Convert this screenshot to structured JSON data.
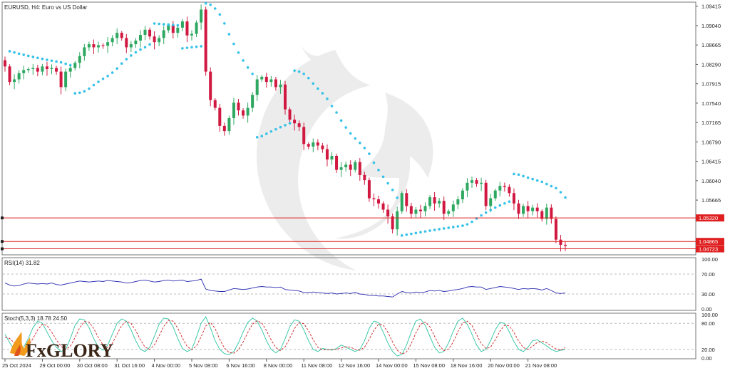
{
  "header": {
    "symbol_title": "EURUSD, H4:  Euro vs US Dollar",
    "rsi_title": "RSI(14) 31.82",
    "stoch_title": "Stoch(5,3,3) 18.78 24.50"
  },
  "logo": {
    "text": "FxGLORY"
  },
  "colors": {
    "bull": "#2ea860",
    "bear": "#d01840",
    "psar": "#36c2e8",
    "hline": "#e02020",
    "rsi": "#2a2ab0",
    "stoch_main": "#3ec8a8",
    "stoch_signal": "#d02020",
    "frame": "#777777",
    "badge": "#e02020"
  },
  "chart_data": [
    {
      "type": "candlestick",
      "title": "EURUSD, H4:  Euro vs US Dollar",
      "ylim": [
        1.0462,
        1.0948
      ],
      "y_ticks": [
        "1.09415",
        "1.09040",
        "1.08665",
        "1.08290",
        "1.07915",
        "1.07540",
        "1.07165",
        "1.06790",
        "1.06415",
        "1.06040",
        "1.05665"
      ],
      "y_tick_values": [
        1.09415,
        1.0904,
        1.08665,
        1.0829,
        1.07915,
        1.0754,
        1.07165,
        1.0679,
        1.06415,
        1.0604,
        1.05665
      ],
      "x_ticks": [
        "25 Oct 2024",
        "29 Oct 00:00",
        "30 Oct 08:00",
        "31 Oct 16:00",
        "4 Nov 00:00",
        "5 Nov 08:00",
        "6 Nov 16:00",
        "8 Nov 00:00",
        "11 Nov 08:00",
        "12 Nov 16:00",
        "14 Nov 00:00",
        "15 Nov 08:00",
        "18 Nov 16:00",
        "20 Nov 00:00",
        "21 Nov 08:00"
      ],
      "x_tick_bars": [
        0,
        8,
        16,
        24,
        32,
        40,
        48,
        56,
        64,
        72,
        80,
        88,
        96,
        104,
        112
      ],
      "hlines": [
        {
          "label": "1.05320",
          "value": 1.0532
        },
        {
          "label": "1.04865",
          "value": 1.04865
        },
        {
          "label": "1.04723",
          "value": 1.04723
        }
      ],
      "closes": [
        1.0825,
        1.0795,
        1.08,
        1.0812,
        1.0818,
        1.082,
        1.0822,
        1.0815,
        1.0825,
        1.082,
        1.0822,
        1.0815,
        1.0785,
        1.0815,
        1.0822,
        1.0832,
        1.0845,
        1.0862,
        1.0868,
        1.0862,
        1.0866,
        1.0865,
        1.0872,
        1.088,
        1.089,
        1.088,
        1.0862,
        1.0868,
        1.0875,
        1.0886,
        1.0896,
        1.0883,
        1.0872,
        1.088,
        1.0895,
        1.0905,
        1.089,
        1.09,
        1.0912,
        1.0885,
        1.0888,
        1.091,
        1.0935,
        1.0815,
        1.076,
        1.0745,
        1.071,
        1.07,
        1.0725,
        1.0755,
        1.074,
        1.073,
        1.0745,
        1.077,
        1.08,
        1.0805,
        1.0795,
        1.08,
        1.0785,
        1.079,
        1.0742,
        1.0722,
        1.0715,
        1.0708,
        1.0675,
        1.067,
        1.0678,
        1.0672,
        1.0665,
        1.0645,
        1.0652,
        1.0625,
        1.063,
        1.0635,
        1.0625,
        1.064,
        1.0615,
        1.0605,
        1.057,
        1.0568,
        1.056,
        1.0548,
        1.0535,
        1.051,
        1.0545,
        1.058,
        1.0555,
        1.054,
        1.0548,
        1.0545,
        1.0555,
        1.0572,
        1.056,
        1.0565,
        1.054,
        1.0545,
        1.0558,
        1.0568,
        1.0585,
        1.06,
        1.0605,
        1.0598,
        1.06,
        1.0555,
        1.057,
        1.0585,
        1.0594,
        1.0592,
        1.058,
        1.056,
        1.054,
        1.0555,
        1.0545,
        1.0552,
        1.0545,
        1.053,
        1.0552,
        1.053,
        1.049,
        1.048,
        1.0478
      ]
    },
    {
      "type": "line",
      "title": "RSI(14) 31.82",
      "ylim": [
        0,
        100
      ],
      "y_ticks": [
        "100.00",
        "70.00",
        "30.00",
        "0.00"
      ],
      "y_tick_values": [
        100,
        70,
        30,
        0
      ],
      "levels": [
        70,
        30
      ],
      "values": [
        52,
        48,
        46,
        47,
        50,
        52,
        51,
        50,
        51,
        50,
        52,
        49,
        48,
        50,
        52,
        54,
        56,
        55,
        54,
        55,
        56,
        55,
        57,
        56,
        55,
        54,
        52,
        53,
        55,
        57,
        58,
        56,
        54,
        55,
        57,
        58,
        56,
        57,
        58,
        55,
        56,
        57,
        60,
        40,
        37,
        36,
        35,
        35,
        38,
        41,
        40,
        39,
        40,
        42,
        44,
        45,
        44,
        44,
        43,
        44,
        39,
        38,
        37,
        36,
        33,
        33,
        34,
        33,
        32,
        31,
        32,
        30,
        31,
        32,
        31,
        33,
        30,
        29,
        27,
        27,
        26,
        26,
        25,
        24,
        30,
        35,
        33,
        32,
        34,
        33,
        34,
        37,
        36,
        37,
        35,
        36,
        38,
        39,
        41,
        44,
        45,
        44,
        44,
        39,
        41,
        43,
        45,
        44,
        43,
        41,
        39,
        41,
        40,
        41,
        40,
        38,
        41,
        37,
        32,
        31,
        32
      ]
    },
    {
      "type": "line",
      "title": "Stoch(5,3,3) 18.78 24.50",
      "ylim": [
        0,
        100
      ],
      "y_ticks": [
        "100.00",
        "80.00",
        "20.00",
        "0.00"
      ],
      "y_tick_values": [
        100,
        80,
        20,
        0
      ],
      "levels": [
        80,
        20
      ],
      "series": [
        {
          "values": [
            55,
            35,
            20,
            15,
            25,
            45,
            70,
            85,
            80,
            60,
            40,
            25,
            15,
            20,
            45,
            75,
            90,
            88,
            70,
            45,
            25,
            18,
            30,
            55,
            80,
            90,
            85,
            65,
            40,
            20,
            15,
            25,
            50,
            78,
            92,
            90,
            72,
            45,
            22,
            15,
            20,
            48,
            80,
            95,
            70,
            40,
            20,
            10,
            8,
            15,
            35,
            60,
            82,
            92,
            85,
            65,
            40,
            20,
            12,
            20,
            45,
            72,
            88,
            85,
            65,
            40,
            20,
            15,
            22,
            20,
            18,
            22,
            30,
            25,
            20,
            15,
            20,
            40,
            68,
            85,
            82,
            60,
            35,
            15,
            5,
            8,
            30,
            60,
            85,
            90,
            75,
            50,
            25,
            12,
            15,
            35,
            62,
            85,
            92,
            78,
            55,
            30,
            15,
            20,
            40,
            65,
            82,
            80,
            60,
            38,
            20,
            15,
            25,
            40,
            42,
            35,
            28,
            20,
            15,
            18,
            19
          ]
        },
        {
          "values": [
            48,
            45,
            35,
            22,
            20,
            28,
            45,
            65,
            78,
            75,
            60,
            42,
            27,
            20,
            27,
            47,
            70,
            84,
            83,
            68,
            47,
            30,
            24,
            34,
            55,
            75,
            85,
            80,
            63,
            42,
            25,
            20,
            30,
            51,
            73,
            87,
            85,
            69,
            46,
            27,
            19,
            28,
            49,
            74,
            82,
            68,
            43,
            23,
            13,
            11,
            19,
            37,
            59,
            78,
            86,
            81,
            63,
            42,
            24,
            17,
            26,
            46,
            68,
            82,
            79,
            63,
            42,
            25,
            19,
            19,
            20,
            20,
            23,
            26,
            25,
            20,
            18,
            25,
            43,
            64,
            78,
            76,
            59,
            37,
            18,
            9,
            14,
            33,
            58,
            78,
            83,
            72,
            50,
            29,
            17,
            21,
            37,
            61,
            80,
            85,
            75,
            54,
            33,
            22,
            25,
            42,
            62,
            76,
            74,
            59,
            39,
            24,
            20,
            27,
            36,
            39,
            35,
            28,
            21,
            18,
            24
          ]
        }
      ]
    }
  ]
}
